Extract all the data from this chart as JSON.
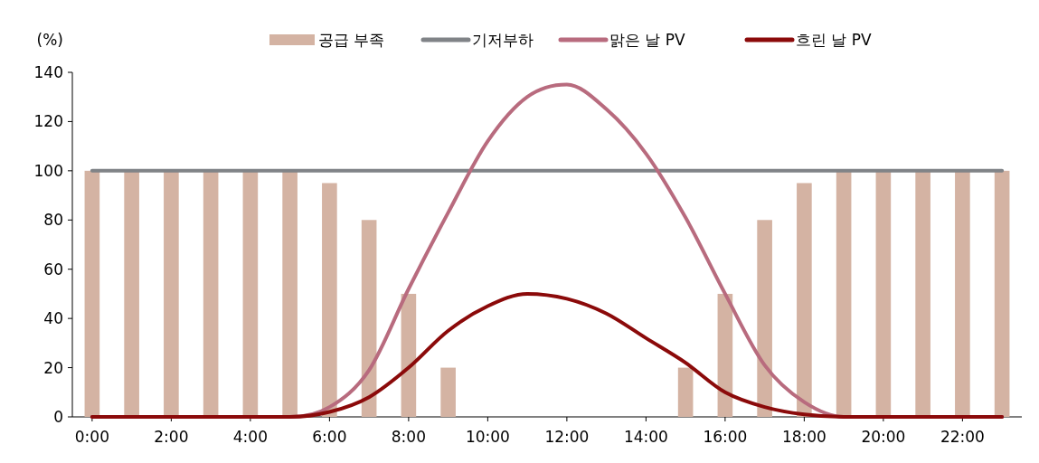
{
  "chart_data": {
    "type": "line",
    "ylabel": "(%)",
    "x": [
      0,
      1,
      2,
      3,
      4,
      5,
      6,
      7,
      8,
      9,
      10,
      11,
      12,
      13,
      14,
      15,
      16,
      17,
      18,
      19,
      20,
      21,
      22,
      23
    ],
    "xlim": [
      -0.5,
      23.5
    ],
    "xticks": [
      {
        "value": 0,
        "label": "0:00"
      },
      {
        "value": 2,
        "label": "2:00"
      },
      {
        "value": 4,
        "label": "4:00"
      },
      {
        "value": 6,
        "label": "6:00"
      },
      {
        "value": 8,
        "label": "8:00"
      },
      {
        "value": 10,
        "label": "10:00"
      },
      {
        "value": 12,
        "label": "12:00"
      },
      {
        "value": 14,
        "label": "14:00"
      },
      {
        "value": 16,
        "label": "16:00"
      },
      {
        "value": 18,
        "label": "18:00"
      },
      {
        "value": 20,
        "label": "20:00"
      },
      {
        "value": 22,
        "label": "22:00"
      }
    ],
    "ylim": [
      0,
      140
    ],
    "yticks": [
      0,
      20,
      40,
      60,
      80,
      100,
      120,
      140
    ],
    "legend": "top",
    "grid": false,
    "marker": "none",
    "line_style": "solid",
    "series": [
      {
        "name": "공급 부족",
        "type": "bar",
        "color": "#d4b3a3",
        "values": [
          100,
          100,
          100,
          100,
          100,
          100,
          95,
          80,
          50,
          20,
          0,
          0,
          0,
          0,
          0,
          20,
          50,
          80,
          95,
          100,
          100,
          100,
          100,
          100
        ]
      },
      {
        "name": "기저부하",
        "color": "#808387",
        "values": [
          100,
          100,
          100,
          100,
          100,
          100,
          100,
          100,
          100,
          100,
          100,
          100,
          100,
          100,
          100,
          100,
          100,
          100,
          100,
          100,
          100,
          100,
          100,
          100
        ]
      },
      {
        "name": "맑은 날 PV",
        "color": "#b86b7e",
        "values": [
          0,
          0,
          0,
          0,
          0,
          0,
          4,
          19,
          52,
          83,
          112,
          130,
          135,
          125,
          107,
          81,
          50,
          21,
          6,
          0,
          0,
          0,
          0,
          0
        ]
      },
      {
        "name": "흐린 날 PV",
        "color": "#8b0a0a",
        "values": [
          0,
          0,
          0,
          0,
          0,
          0,
          2,
          8,
          20,
          35,
          45,
          50,
          48,
          42,
          32,
          22,
          10,
          4,
          1,
          0,
          0,
          0,
          0,
          0
        ]
      }
    ]
  }
}
